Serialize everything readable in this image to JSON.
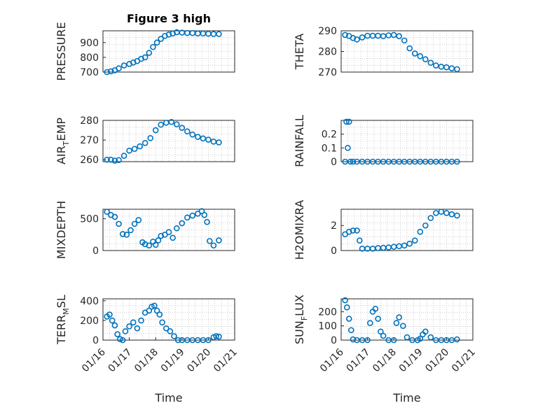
{
  "colors": {
    "marker": "#0072BD",
    "axis": "#262626",
    "grid": "#b0b0b0"
  },
  "chart_data": [
    {
      "type": "scatter",
      "title": "Figure 3 high",
      "ylabel": "PRESSURE",
      "ylabel_sub": null,
      "ylim": [
        700,
        980
      ],
      "yticks": [
        700,
        800,
        900
      ],
      "xlim": [
        0,
        5
      ],
      "xticks": [],
      "series": [
        {
          "name": "PRESSURE",
          "x": [
            0.15,
            0.3,
            0.45,
            0.6,
            0.8,
            1.0,
            1.15,
            1.3,
            1.45,
            1.6,
            1.75,
            1.9,
            2.05,
            2.2,
            2.35,
            2.5,
            2.65,
            2.8,
            3.0,
            3.2,
            3.4,
            3.6,
            3.8,
            4.0,
            4.2,
            4.4
          ],
          "y": [
            700,
            705,
            712,
            725,
            745,
            755,
            765,
            775,
            790,
            800,
            830,
            870,
            900,
            925,
            945,
            955,
            962,
            970,
            968,
            965,
            965,
            962,
            962,
            960,
            958,
            958
          ]
        }
      ]
    },
    {
      "type": "scatter",
      "title": "",
      "ylabel": "THETA",
      "ylabel_sub": null,
      "ylim": [
        270,
        290
      ],
      "yticks": [
        270,
        280,
        290
      ],
      "xlim": [
        0,
        5
      ],
      "xticks": [],
      "series": [
        {
          "name": "THETA",
          "x": [
            0.15,
            0.3,
            0.45,
            0.6,
            0.8,
            1.0,
            1.2,
            1.4,
            1.6,
            1.8,
            2.0,
            2.2,
            2.4,
            2.6,
            2.8,
            3.0,
            3.2,
            3.4,
            3.6,
            3.8,
            4.0,
            4.2,
            4.4
          ],
          "y": [
            288,
            287.5,
            286.5,
            285.8,
            286.8,
            287.6,
            287.6,
            287.6,
            287.4,
            287.8,
            288,
            287.4,
            285.3,
            281.5,
            279,
            277.7,
            276.2,
            274.5,
            273.2,
            272.6,
            272.3,
            271.8,
            271.4
          ]
        }
      ]
    },
    {
      "type": "scatter",
      "title": "",
      "ylabel": "AIR",
      "ylabel_sub": "T",
      "ylabel_suffix": "EMP",
      "ylim": [
        259,
        280
      ],
      "yticks": [
        260,
        270,
        280
      ],
      "xlim": [
        0,
        5
      ],
      "xticks": [],
      "series": [
        {
          "name": "AIR_TEMP",
          "x": [
            0.15,
            0.3,
            0.45,
            0.6,
            0.8,
            1.0,
            1.2,
            1.4,
            1.6,
            1.8,
            2.0,
            2.2,
            2.4,
            2.6,
            2.8,
            3.0,
            3.2,
            3.4,
            3.6,
            3.8,
            4.0,
            4.2,
            4.4
          ],
          "y": [
            260,
            260,
            259.5,
            259.8,
            262,
            264.6,
            265.5,
            266.8,
            268.5,
            271,
            275,
            277.8,
            278.8,
            279.2,
            278,
            276.2,
            274.4,
            272.8,
            271.6,
            270.8,
            270.2,
            269.2,
            268.8
          ]
        }
      ]
    },
    {
      "type": "scatter",
      "title": "",
      "ylabel": "RAINFALL",
      "ylabel_sub": null,
      "ylim": [
        0,
        0.3
      ],
      "yticks": [
        0,
        0.1,
        0.2
      ],
      "ytick_labels": [
        "0",
        "0.1",
        "0.2"
      ],
      "xlim": [
        0,
        5
      ],
      "xticks": [],
      "series": [
        {
          "name": "RAINFALL",
          "x": [
            0.15,
            0.2,
            0.25,
            0.3,
            0.35,
            0.45,
            0.6,
            0.8,
            1.0,
            1.2,
            1.4,
            1.6,
            1.8,
            2.0,
            2.2,
            2.4,
            2.6,
            2.8,
            3.0,
            3.2,
            3.4,
            3.6,
            3.8,
            4.0,
            4.2,
            4.4
          ],
          "y": [
            0,
            0.29,
            0.1,
            0.29,
            0,
            0,
            0,
            0,
            0,
            0,
            0,
            0,
            0,
            0,
            0,
            0,
            0,
            0,
            0,
            0,
            0,
            0,
            0,
            0,
            0,
            0
          ]
        }
      ]
    },
    {
      "type": "scatter",
      "title": "",
      "ylabel": "MIXDEPTH",
      "ylabel_sub": null,
      "ylim": [
        0,
        650
      ],
      "yticks": [
        0,
        500
      ],
      "xlim": [
        0,
        5
      ],
      "xticks": [],
      "series": [
        {
          "name": "MIXDEPTH",
          "x": [
            0.15,
            0.3,
            0.45,
            0.6,
            0.75,
            0.9,
            1.05,
            1.2,
            1.35,
            1.5,
            1.6,
            1.75,
            1.9,
            2.0,
            2.1,
            2.2,
            2.35,
            2.5,
            2.65,
            2.8,
            3.0,
            3.2,
            3.4,
            3.6,
            3.75,
            3.85,
            3.95,
            4.05,
            4.2,
            4.4
          ],
          "y": [
            610,
            560,
            530,
            420,
            260,
            250,
            320,
            420,
            480,
            130,
            100,
            80,
            140,
            90,
            160,
            230,
            250,
            290,
            200,
            350,
            430,
            520,
            550,
            580,
            620,
            560,
            450,
            150,
            80,
            160
          ]
        }
      ]
    },
    {
      "type": "scatter",
      "title": "",
      "ylabel": "H2OMIXRA",
      "ylabel_sub": null,
      "ylim": [
        0,
        3.3
      ],
      "yticks": [
        0,
        2
      ],
      "xlim": [
        0,
        5
      ],
      "xticks": [],
      "series": [
        {
          "name": "H2OMIXRA",
          "x": [
            0.15,
            0.3,
            0.45,
            0.6,
            0.7,
            0.8,
            1.0,
            1.2,
            1.4,
            1.6,
            1.8,
            2.0,
            2.2,
            2.4,
            2.6,
            2.8,
            3.0,
            3.2,
            3.4,
            3.6,
            3.8,
            4.0,
            4.2,
            4.4
          ],
          "y": [
            1.3,
            1.5,
            1.6,
            1.6,
            0.8,
            0.15,
            0.15,
            0.15,
            0.2,
            0.22,
            0.25,
            0.3,
            0.35,
            0.4,
            0.55,
            0.8,
            1.5,
            2.0,
            2.6,
            3.0,
            3.1,
            3.0,
            2.9,
            2.8
          ]
        }
      ]
    },
    {
      "type": "scatter",
      "title": "",
      "ylabel": "TERR",
      "ylabel_sub": "M",
      "ylabel_suffix": "SL",
      "ylim": [
        0,
        420
      ],
      "yticks": [
        0,
        200,
        400
      ],
      "xlim": [
        0,
        5
      ],
      "xticks": [
        0,
        1,
        2,
        3,
        4,
        5
      ],
      "xtick_labels": [
        "01/16",
        "01/17",
        "01/18",
        "01/19",
        "01/20",
        "01/21"
      ],
      "xlabel": "Time",
      "series": [
        {
          "name": "TERR_MSL",
          "x": [
            0.15,
            0.25,
            0.35,
            0.45,
            0.55,
            0.65,
            0.75,
            0.85,
            1.0,
            1.15,
            1.3,
            1.45,
            1.6,
            1.75,
            1.85,
            1.95,
            2.05,
            2.15,
            2.25,
            2.4,
            2.55,
            2.7,
            2.85,
            3.0,
            3.2,
            3.4,
            3.6,
            3.8,
            4.0,
            4.2,
            4.3,
            4.4
          ],
          "y": [
            240,
            260,
            200,
            150,
            60,
            10,
            0,
            90,
            140,
            180,
            120,
            200,
            280,
            300,
            340,
            350,
            300,
            260,
            180,
            120,
            90,
            40,
            0,
            0,
            0,
            0,
            0,
            0,
            0,
            30,
            40,
            35
          ]
        }
      ]
    },
    {
      "type": "scatter",
      "title": "",
      "ylabel": "SUN",
      "ylabel_sub": "F",
      "ylabel_suffix": "LUX",
      "ylim": [
        0,
        290
      ],
      "yticks": [
        0,
        100,
        200
      ],
      "xlim": [
        0,
        5
      ],
      "xticks": [
        0,
        1,
        2,
        3,
        4,
        5
      ],
      "xtick_labels": [
        "01/16",
        "01/17",
        "01/18",
        "01/19",
        "01/20",
        "01/21"
      ],
      "xlabel": "Time",
      "series": [
        {
          "name": "SUN_FLUX",
          "x": [
            0.15,
            0.22,
            0.3,
            0.38,
            0.45,
            0.6,
            0.8,
            1.0,
            1.1,
            1.2,
            1.3,
            1.4,
            1.5,
            1.6,
            1.8,
            2.0,
            2.1,
            2.2,
            2.35,
            2.5,
            2.7,
            2.9,
            3.0,
            3.1,
            3.2,
            3.4,
            3.6,
            3.8,
            4.0,
            4.2,
            4.4
          ],
          "y": [
            280,
            230,
            150,
            70,
            5,
            0,
            0,
            0,
            120,
            200,
            220,
            150,
            60,
            30,
            0,
            0,
            120,
            160,
            100,
            20,
            0,
            0,
            10,
            40,
            60,
            20,
            0,
            0,
            0,
            0,
            5
          ]
        }
      ]
    }
  ]
}
